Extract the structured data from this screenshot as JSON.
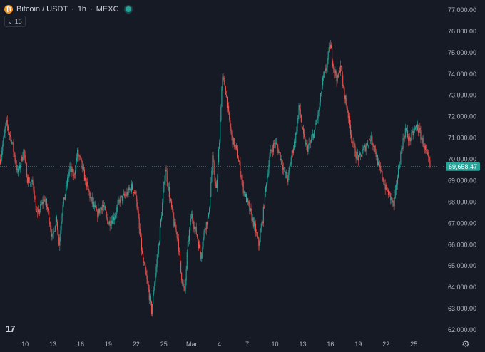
{
  "header": {
    "coin_icon_letter": "₿",
    "symbol": "Bitcoin / USDT",
    "separator1": "·",
    "interval": "1h",
    "separator2": "·",
    "exchange": "MEXC"
  },
  "indicator": {
    "chevron": "⌄",
    "label": "15"
  },
  "logo": {
    "text": "17"
  },
  "settings": {
    "icon": "gear-icon"
  },
  "colors": {
    "background": "#161a25",
    "up": "#26a69a",
    "down": "#ef5350",
    "price_tag": "#26a69a"
  },
  "chart_data": {
    "type": "candlestick",
    "title": "",
    "xlabel": "",
    "ylabel": "",
    "ylim": [
      61900,
      77200
    ],
    "y_ticks": [
      "77,000.00",
      "76,000.00",
      "75,000.00",
      "74,000.00",
      "73,000.00",
      "72,000.00",
      "71,000.00",
      "70,000.00",
      "69,000.00",
      "68,000.00",
      "67,000.00",
      "66,000.00",
      "65,000.00",
      "64,000.00",
      "63,000.00",
      "62,000.00"
    ],
    "y_tick_values": [
      77000,
      76000,
      75000,
      74000,
      73000,
      72000,
      71000,
      70000,
      69000,
      68000,
      67000,
      66000,
      65000,
      64000,
      63000,
      62000
    ],
    "x_ticks": [
      "10",
      "13",
      "16",
      "19",
      "22",
      "25",
      "Mar",
      "4",
      "7",
      "10",
      "13",
      "16",
      "19",
      "22",
      "25"
    ],
    "x_tick_hours": [
      144,
      216,
      288,
      360,
      432,
      504,
      576,
      648,
      720,
      792,
      864,
      936,
      1008,
      1080,
      1152
    ],
    "x_range_hours": [
      79,
      1233
    ],
    "last_price": 69658.47,
    "last_price_label": "69,658.47",
    "grid": false,
    "price_path": [
      [
        80,
        70000
      ],
      [
        95,
        71700
      ],
      [
        110,
        70800
      ],
      [
        125,
        69300
      ],
      [
        140,
        70400
      ],
      [
        150,
        69100
      ],
      [
        165,
        68800
      ],
      [
        175,
        67300
      ],
      [
        185,
        67800
      ],
      [
        195,
        68200
      ],
      [
        205,
        67400
      ],
      [
        215,
        66200
      ],
      [
        225,
        67400
      ],
      [
        232,
        66000
      ],
      [
        240,
        67600
      ],
      [
        250,
        68600
      ],
      [
        260,
        69600
      ],
      [
        270,
        69200
      ],
      [
        280,
        70300
      ],
      [
        288,
        69900
      ],
      [
        300,
        69000
      ],
      [
        315,
        68100
      ],
      [
        330,
        67400
      ],
      [
        345,
        67900
      ],
      [
        360,
        67000
      ],
      [
        375,
        67300
      ],
      [
        390,
        68100
      ],
      [
        405,
        68300
      ],
      [
        420,
        68700
      ],
      [
        432,
        68300
      ],
      [
        440,
        66700
      ],
      [
        450,
        65200
      ],
      [
        460,
        64300
      ],
      [
        472,
        62900
      ],
      [
        480,
        64300
      ],
      [
        490,
        65900
      ],
      [
        500,
        67900
      ],
      [
        508,
        69600
      ],
      [
        520,
        68100
      ],
      [
        530,
        67000
      ],
      [
        540,
        66300
      ],
      [
        548,
        64700
      ],
      [
        558,
        63700
      ],
      [
        565,
        65800
      ],
      [
        575,
        67400
      ],
      [
        590,
        66400
      ],
      [
        600,
        65500
      ],
      [
        610,
        66800
      ],
      [
        620,
        67300
      ],
      [
        630,
        70000
      ],
      [
        640,
        68500
      ],
      [
        648,
        71000
      ],
      [
        655,
        73800
      ],
      [
        662,
        73500
      ],
      [
        670,
        72300
      ],
      [
        680,
        71000
      ],
      [
        690,
        70500
      ],
      [
        700,
        69700
      ],
      [
        710,
        68600
      ],
      [
        720,
        68000
      ],
      [
        730,
        67400
      ],
      [
        740,
        66800
      ],
      [
        750,
        66000
      ],
      [
        760,
        67200
      ],
      [
        770,
        69000
      ],
      [
        780,
        70300
      ],
      [
        792,
        70800
      ],
      [
        805,
        70200
      ],
      [
        815,
        69500
      ],
      [
        825,
        69000
      ],
      [
        835,
        70200
      ],
      [
        845,
        71000
      ],
      [
        855,
        72500
      ],
      [
        865,
        71100
      ],
      [
        875,
        70500
      ],
      [
        885,
        70800
      ],
      [
        895,
        71400
      ],
      [
        905,
        72200
      ],
      [
        915,
        73600
      ],
      [
        925,
        74300
      ],
      [
        935,
        75400
      ],
      [
        945,
        74200
      ],
      [
        955,
        73700
      ],
      [
        962,
        74500
      ],
      [
        970,
        73200
      ],
      [
        980,
        72300
      ],
      [
        990,
        71100
      ],
      [
        1000,
        70300
      ],
      [
        1010,
        70000
      ],
      [
        1020,
        70400
      ],
      [
        1030,
        70700
      ],
      [
        1040,
        71000
      ],
      [
        1050,
        70600
      ],
      [
        1060,
        69700
      ],
      [
        1070,
        69200
      ],
      [
        1080,
        68600
      ],
      [
        1090,
        68300
      ],
      [
        1100,
        67800
      ],
      [
        1110,
        69200
      ],
      [
        1120,
        70500
      ],
      [
        1130,
        71400
      ],
      [
        1140,
        70900
      ],
      [
        1150,
        71200
      ],
      [
        1160,
        71600
      ],
      [
        1170,
        71100
      ],
      [
        1180,
        70500
      ],
      [
        1190,
        69900
      ],
      [
        1195,
        69660
      ]
    ]
  }
}
